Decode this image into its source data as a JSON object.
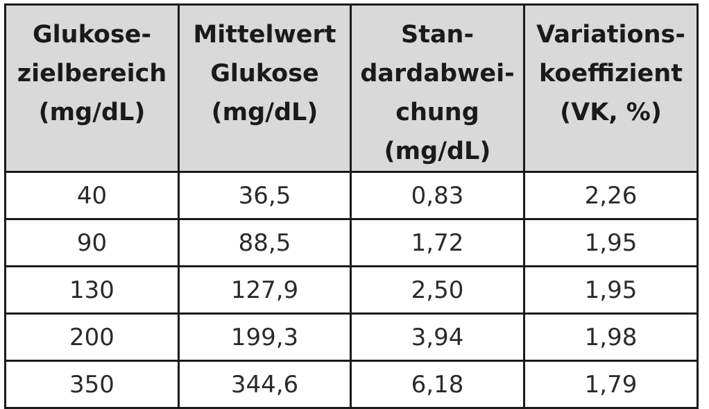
{
  "table": {
    "headers": [
      {
        "lines": [
          "Glukose-",
          "zielbereich",
          "(mg/dL)"
        ]
      },
      {
        "lines": [
          "Mittelwert",
          "Glukose",
          "(mg/dL)"
        ]
      },
      {
        "lines": [
          "Stan-",
          "dardabwei-",
          "chung",
          "(mg/dL)"
        ]
      },
      {
        "lines": [
          "Variations-",
          "koeffizient",
          "(VK, %)"
        ]
      }
    ],
    "rows": [
      [
        "40",
        "36,5",
        "0,83",
        "2,26"
      ],
      [
        "90",
        "88,5",
        "1,72",
        "1,95"
      ],
      [
        "130",
        "127,9",
        "2,50",
        "1,95"
      ],
      [
        "200",
        "199,3",
        "3,94",
        "1,98"
      ],
      [
        "350",
        "344,6",
        "6,18",
        "1,79"
      ]
    ]
  },
  "colors": {
    "header_background": "#d9d9d9",
    "border": "#1a1a1a",
    "text": "#1a1a1a"
  }
}
